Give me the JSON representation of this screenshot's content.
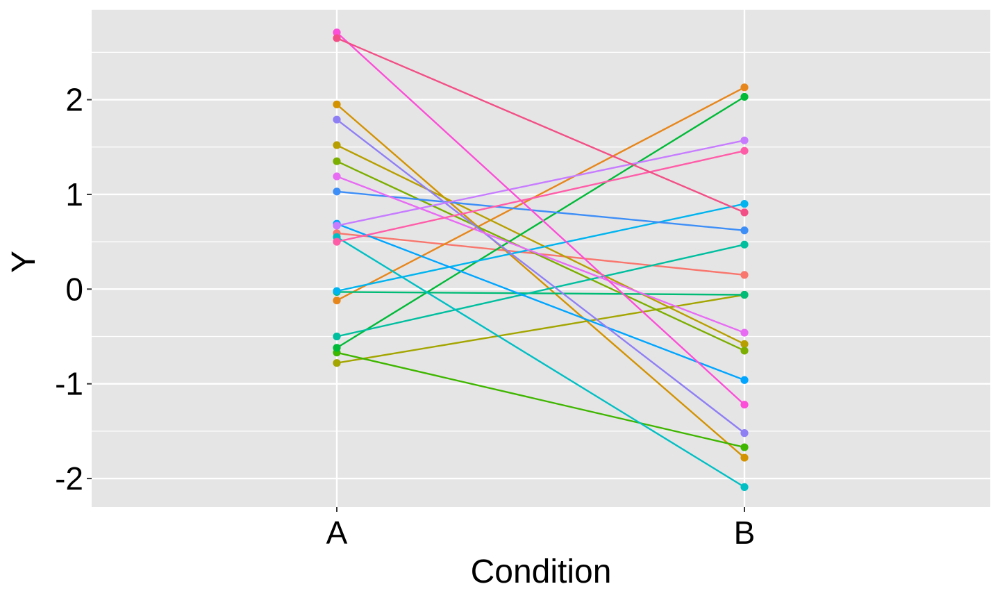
{
  "chart_data": {
    "type": "line",
    "title": "",
    "xlabel": "Condition",
    "ylabel": "Y",
    "categories": [
      "A",
      "B"
    ],
    "ylim": [
      -2.3,
      2.95
    ],
    "y_ticks": [
      "-2",
      "-1",
      "0",
      "1",
      "2"
    ],
    "grid": true,
    "legend": "none",
    "panel_background": "#e5e5e5",
    "series": [
      {
        "color": "#f8766d",
        "values": [
          0.59,
          0.15
        ]
      },
      {
        "color": "#e7861b",
        "values": [
          -0.12,
          2.13
        ]
      },
      {
        "color": "#d39200",
        "values": [
          1.95,
          -1.78
        ]
      },
      {
        "color": "#b79f00",
        "values": [
          1.52,
          -0.58
        ]
      },
      {
        "color": "#a3a500",
        "values": [
          -0.78,
          -0.06
        ]
      },
      {
        "color": "#7cae00",
        "values": [
          1.35,
          -0.65
        ]
      },
      {
        "color": "#3fb600",
        "values": [
          -0.67,
          -1.67
        ]
      },
      {
        "color": "#00ba38",
        "values": [
          -0.62,
          2.03
        ]
      },
      {
        "color": "#00bb75",
        "values": [
          -0.03,
          -0.06
        ]
      },
      {
        "color": "#00bf9f",
        "values": [
          -0.5,
          0.47
        ]
      },
      {
        "color": "#00bfc4",
        "values": [
          0.55,
          -2.09
        ]
      },
      {
        "color": "#00b4ef",
        "values": [
          -0.02,
          0.9
        ]
      },
      {
        "color": "#00a5ff",
        "values": [
          0.69,
          -0.96
        ]
      },
      {
        "color": "#3d8ef7",
        "values": [
          1.03,
          0.62
        ]
      },
      {
        "color": "#8f7ff5",
        "values": [
          1.79,
          -1.52
        ]
      },
      {
        "color": "#c77cff",
        "values": [
          0.67,
          1.57
        ]
      },
      {
        "color": "#e76bf3",
        "values": [
          1.19,
          -0.46
        ]
      },
      {
        "color": "#fc4ed8",
        "values": [
          2.71,
          -1.22
        ]
      },
      {
        "color": "#ff5ca8",
        "values": [
          0.5,
          1.46
        ]
      },
      {
        "color": "#f24f86",
        "values": [
          2.65,
          0.81
        ]
      }
    ]
  }
}
